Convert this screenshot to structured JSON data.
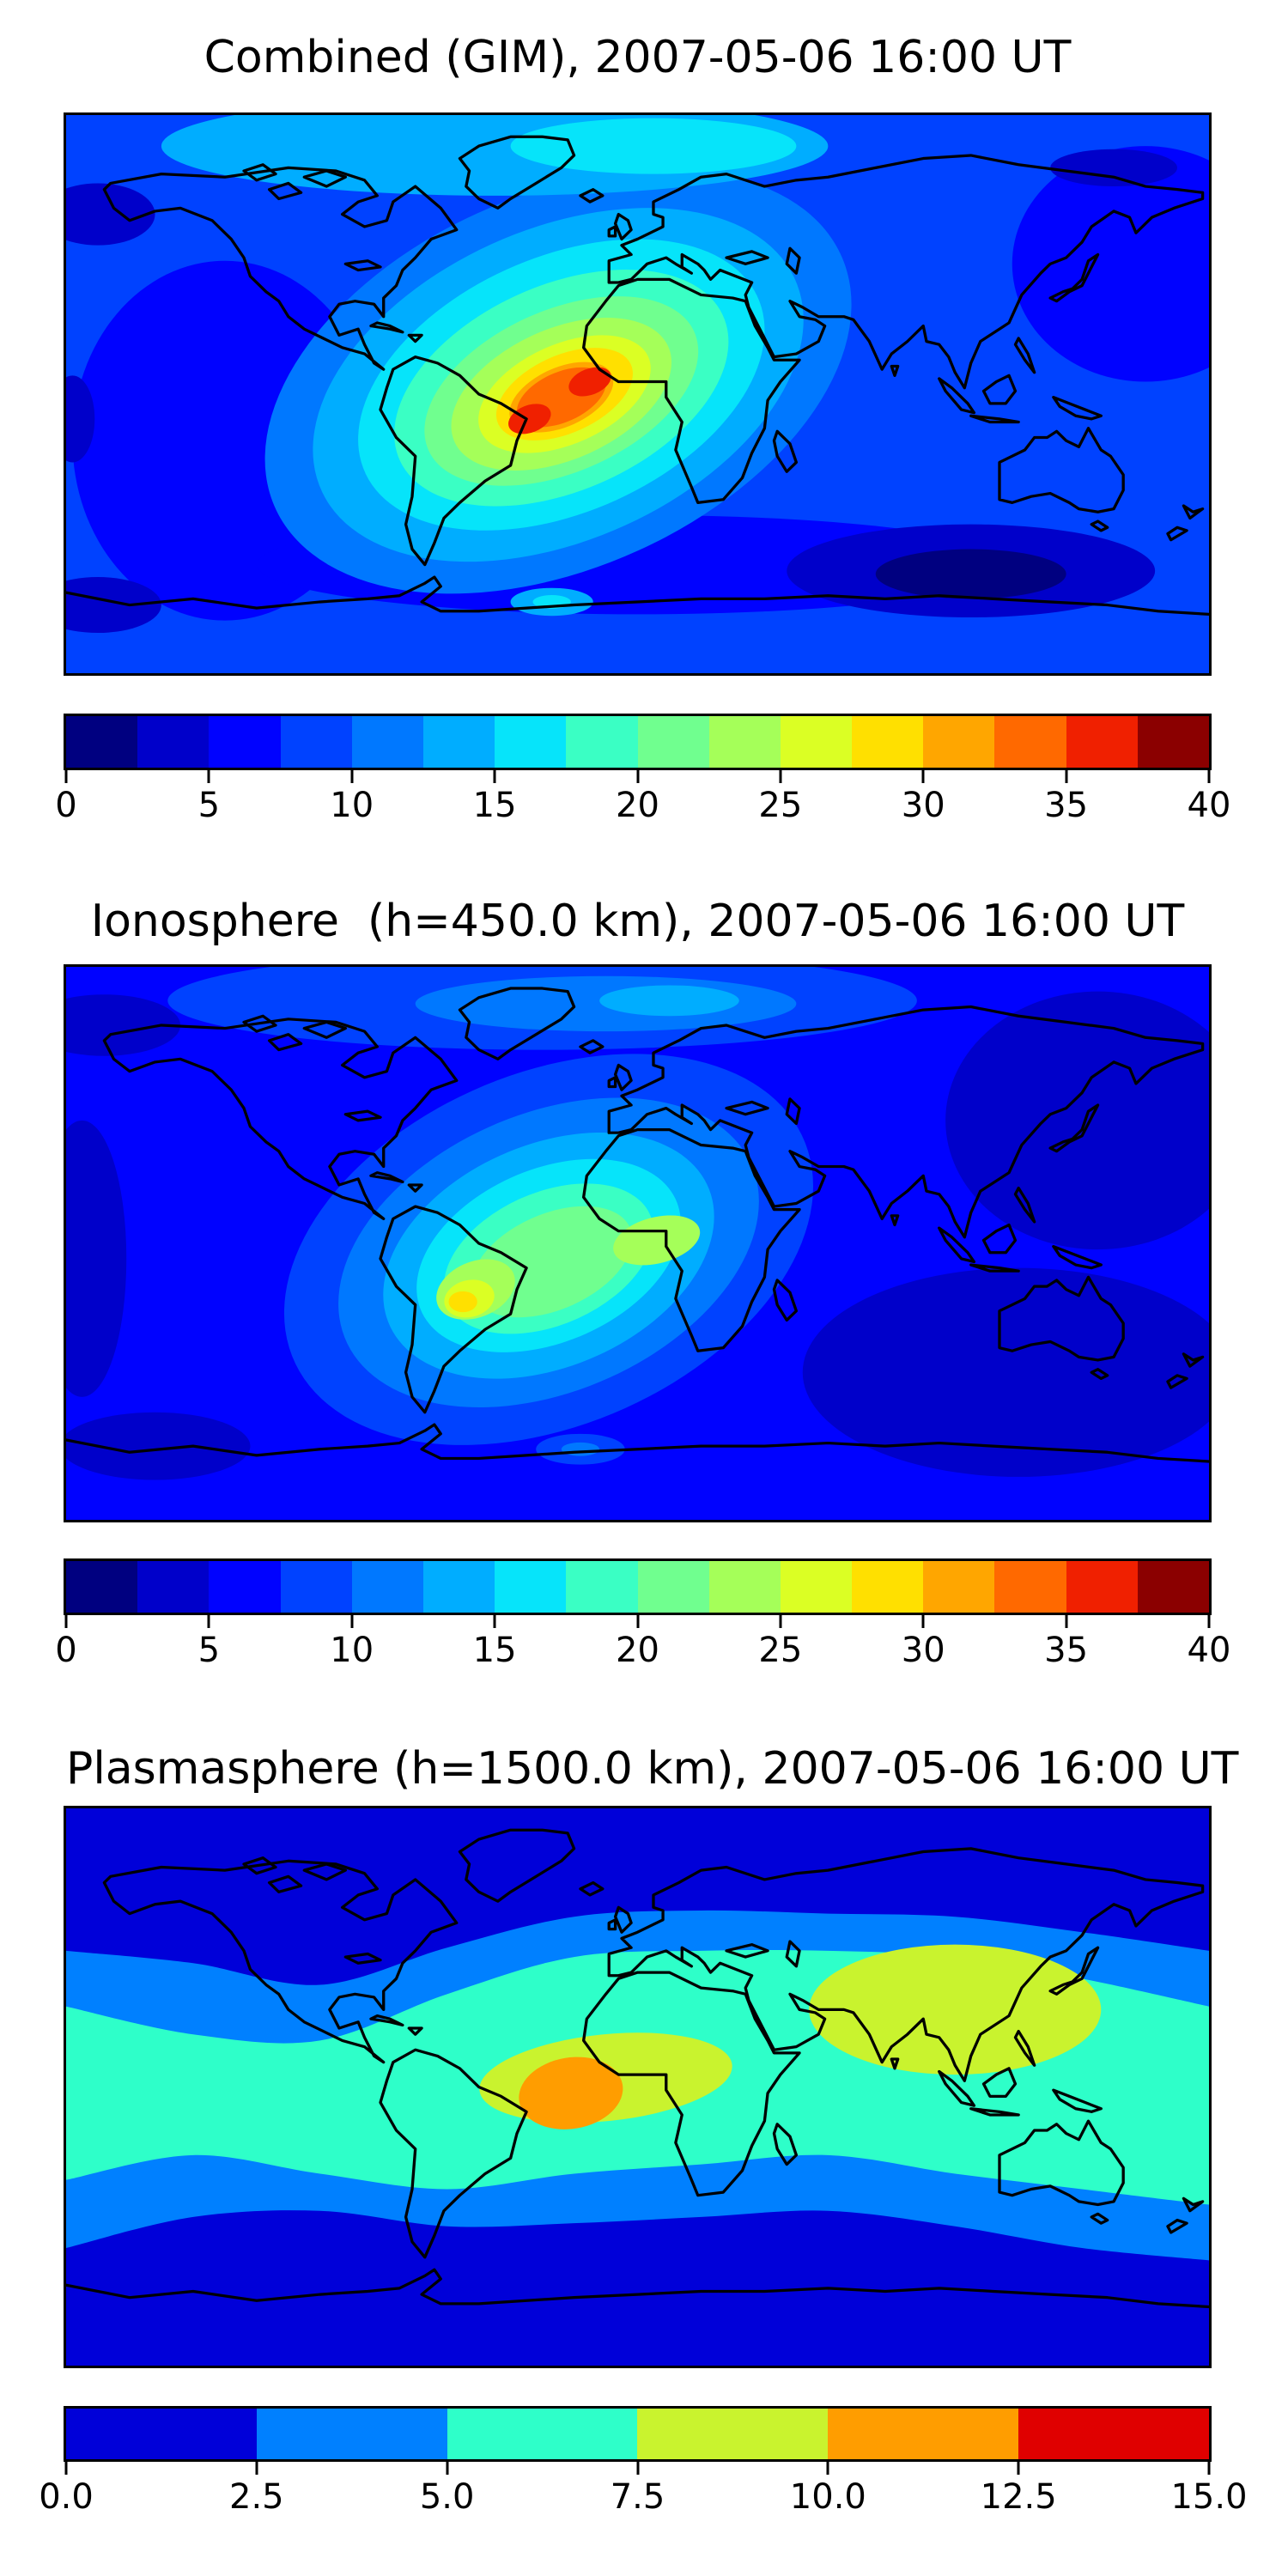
{
  "figure": {
    "background": "#ffffff",
    "description": "Three stacked global TEC filled-contour maps with horizontal colorbars"
  },
  "panels": [
    {
      "id": "combined",
      "title": "Combined (GIM), 2007-05-06 16:00 UT",
      "colorbar": {
        "min": 0,
        "max": 40,
        "tick_labels": [
          "0",
          "5",
          "10",
          "15",
          "20",
          "25",
          "30",
          "35",
          "40"
        ],
        "segment_colors": [
          "#000080",
          "#0000ca",
          "#0002ff",
          "#0042ff",
          "#0078ff",
          "#00adff",
          "#06e4fa",
          "#3affc4",
          "#70ff8f",
          "#a5ff59",
          "#dbff24",
          "#ffe000",
          "#ffa600",
          "#ff6900",
          "#f02000",
          "#8b0000"
        ]
      }
    },
    {
      "id": "ionosphere",
      "title": "Ionosphere  (h=450.0 km), 2007-05-06 16:00 UT",
      "colorbar": {
        "min": 0,
        "max": 40,
        "tick_labels": [
          "0",
          "5",
          "10",
          "15",
          "20",
          "25",
          "30",
          "35",
          "40"
        ],
        "segment_colors": [
          "#000080",
          "#0000ca",
          "#0002ff",
          "#0042ff",
          "#0078ff",
          "#00adff",
          "#06e4fa",
          "#3affc4",
          "#70ff8f",
          "#a5ff59",
          "#dbff24",
          "#ffe000",
          "#ffa600",
          "#ff6900",
          "#f02000",
          "#8b0000"
        ]
      }
    },
    {
      "id": "plasmasphere",
      "title": "Plasmasphere (h=1500.0 km), 2007-05-06 16:00 UT",
      "colorbar": {
        "min": 0,
        "max": 15,
        "tick_labels": [
          "0.0",
          "2.5",
          "5.0",
          "7.5",
          "10.0",
          "12.5",
          "15.0"
        ],
        "segment_colors": [
          "#0000d9",
          "#0080ff",
          "#2effc9",
          "#c9f32e",
          "#ff9d00",
          "#e00000"
        ]
      }
    }
  ],
  "chart_data": [
    {
      "type": "filled_contour_map",
      "title": "Combined (GIM), 2007-05-06 16:00 UT",
      "projection": "equirectangular",
      "lon_range": [
        -180,
        180
      ],
      "lat_range": [
        -90,
        90
      ],
      "colormap": "jet",
      "n_levels": 16,
      "value_min": 0,
      "value_max": 40,
      "level_step": 2.5,
      "colorbar_ticks": [
        0,
        5,
        10,
        15,
        20,
        25,
        30,
        35,
        40
      ],
      "coastlines": true,
      "features": [
        {
          "name": "equatorial-anomaly-hotspot",
          "lon": -22,
          "lat": 2,
          "peak_value": 37,
          "orientation_deg": -25,
          "extent_lon": [
            -120,
            75
          ],
          "extent_lat": [
            -55,
            60
          ]
        },
        {
          "name": "red-core-atlantic-africa",
          "lon": -15,
          "lat": 4,
          "peak_value": 36
        },
        {
          "name": "red-core-brazil",
          "lon": -34,
          "lat": -8,
          "peak_value": 36
        },
        {
          "name": "arctic-light-blue-band",
          "lat": 80,
          "value": 12
        },
        {
          "name": "dark-minimum-south-indian-ocean",
          "lon": 105,
          "lat": -58,
          "value": 2
        },
        {
          "name": "dark-minimum-bering",
          "lon": -170,
          "lat": 58,
          "value": 3
        }
      ]
    },
    {
      "type": "filled_contour_map",
      "title": "Ionosphere  (h=450.0 km), 2007-05-06 16:00 UT",
      "projection": "equirectangular",
      "lon_range": [
        -180,
        180
      ],
      "lat_range": [
        -90,
        90
      ],
      "colormap": "jet",
      "n_levels": 16,
      "value_min": 0,
      "value_max": 40,
      "level_step": 2.5,
      "colorbar_ticks": [
        0,
        5,
        10,
        15,
        20,
        25,
        30,
        35,
        40
      ],
      "coastlines": true,
      "features": [
        {
          "name": "anomaly-hotspot",
          "lon": -28,
          "lat": -4,
          "peak_value": 26,
          "orientation_deg": -25,
          "extent_lon": [
            -115,
            58
          ],
          "extent_lat": [
            -58,
            52
          ]
        },
        {
          "name": "yellow-core-south-america",
          "lon": -55,
          "lat": -19,
          "peak_value": 26
        },
        {
          "name": "yellow-green-blob-africa",
          "lon": 6,
          "lat": 1,
          "peak_value": 24
        },
        {
          "name": "dark-minimum-asia-pacific",
          "lon": 145,
          "lat": 40,
          "value": 3
        },
        {
          "name": "dark-minimum-south-indian-ocean",
          "lon": 120,
          "lat": -42,
          "value": 3
        }
      ]
    },
    {
      "type": "filled_contour_map",
      "title": "Plasmasphere (h=1500.0 km), 2007-05-06 16:00 UT",
      "projection": "equirectangular",
      "lon_range": [
        -180,
        180
      ],
      "lat_range": [
        -90,
        90
      ],
      "colormap": "jet",
      "n_levels": 6,
      "value_min": 0,
      "value_max": 15,
      "level_step": 2.5,
      "colorbar_ticks": [
        0.0,
        2.5,
        5.0,
        7.5,
        10.0,
        12.5,
        15.0
      ],
      "coastlines": true,
      "features": [
        {
          "name": "equatorial-turquoise-band",
          "lat_range": [
            -28,
            40
          ],
          "value": 6
        },
        {
          "name": "yellow-green-blob-africa-atlantic",
          "lon": -10,
          "lat": 3,
          "value": 9
        },
        {
          "name": "yellow-green-blob-asia",
          "lon": 100,
          "lat": 25,
          "value": 9
        },
        {
          "name": "orange-core-brazil-atlantic",
          "lon": -21,
          "lat": -2,
          "peak_value": 12
        },
        {
          "name": "polar-dark-blue-minima",
          "value": 1
        }
      ]
    }
  ]
}
